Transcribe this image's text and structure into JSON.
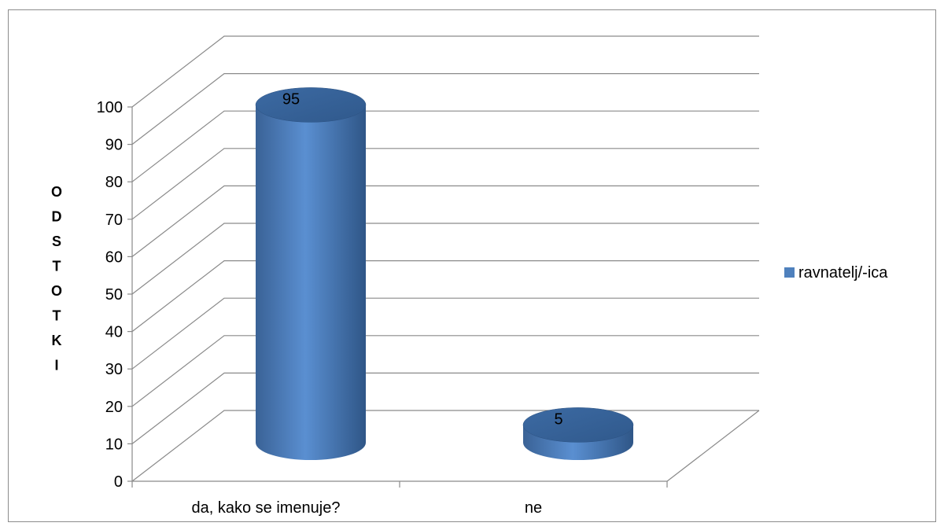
{
  "chart_data": {
    "type": "bar",
    "style": "3d-cylinder",
    "categories": [
      "da, kako se imenuje?",
      "ne"
    ],
    "series": [
      {
        "name": "ravnatelj/-ica",
        "values": [
          95,
          5
        ],
        "color": "#4f81bd"
      }
    ],
    "data_labels": [
      "95",
      "5"
    ],
    "ylabel": "ODSTOTKI",
    "xlabel": "",
    "ylim": [
      0,
      100
    ],
    "yticks": [
      0,
      10,
      20,
      30,
      40,
      50,
      60,
      70,
      80,
      90,
      100
    ],
    "grid": true,
    "legend_position": "right"
  }
}
